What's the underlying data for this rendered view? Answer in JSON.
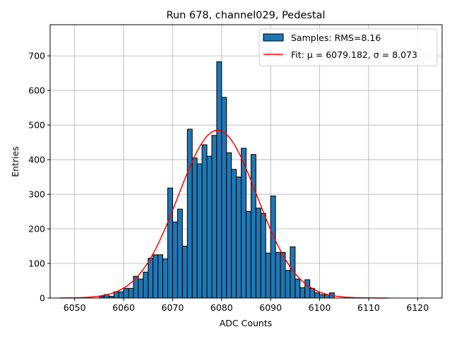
{
  "chart_data": {
    "type": "bar",
    "title": "Run 678, channel029, Pedestal",
    "xlabel": "ADC Counts",
    "ylabel": "Entries",
    "xlim": [
      6045,
      6125
    ],
    "ylim": [
      0,
      790
    ],
    "xticks": [
      6050,
      6060,
      6070,
      6080,
      6090,
      6100,
      6110,
      6120
    ],
    "yticks": [
      0,
      100,
      200,
      300,
      400,
      500,
      600,
      700
    ],
    "grid": true,
    "legend_position": "top-right",
    "bar_width": 1,
    "bins": [
      6055,
      6056,
      6057,
      6058,
      6059,
      6060,
      6061,
      6062,
      6063,
      6064,
      6065,
      6066,
      6067,
      6068,
      6069,
      6070,
      6071,
      6072,
      6073,
      6074,
      6075,
      6076,
      6077,
      6078,
      6079,
      6080,
      6081,
      6082,
      6083,
      6084,
      6085,
      6086,
      6087,
      6088,
      6089,
      6090,
      6091,
      6092,
      6093,
      6094,
      6095,
      6096,
      6097,
      6098,
      6099,
      6100,
      6101,
      6102,
      6103
    ],
    "counts": [
      5,
      10,
      5,
      18,
      18,
      28,
      28,
      63,
      55,
      75,
      115,
      125,
      125,
      113,
      318,
      220,
      257,
      150,
      488,
      405,
      388,
      443,
      410,
      470,
      683,
      580,
      420,
      372,
      350,
      433,
      250,
      415,
      260,
      245,
      130,
      295,
      132,
      132,
      80,
      148,
      55,
      30,
      53,
      28,
      15,
      10,
      10,
      15,
      0
    ],
    "series": [
      {
        "name": "Samples: RMS=8.16",
        "kind": "histogram",
        "color": "#1f77b4"
      },
      {
        "name": "Fit: μ = 6079.182, σ = 8.073",
        "kind": "gaussian-fit",
        "color": "#ff0000",
        "amplitude": 485,
        "mu": 6079.182,
        "sigma": 8.073,
        "x_range": [
          6047,
          6114
        ]
      }
    ]
  }
}
